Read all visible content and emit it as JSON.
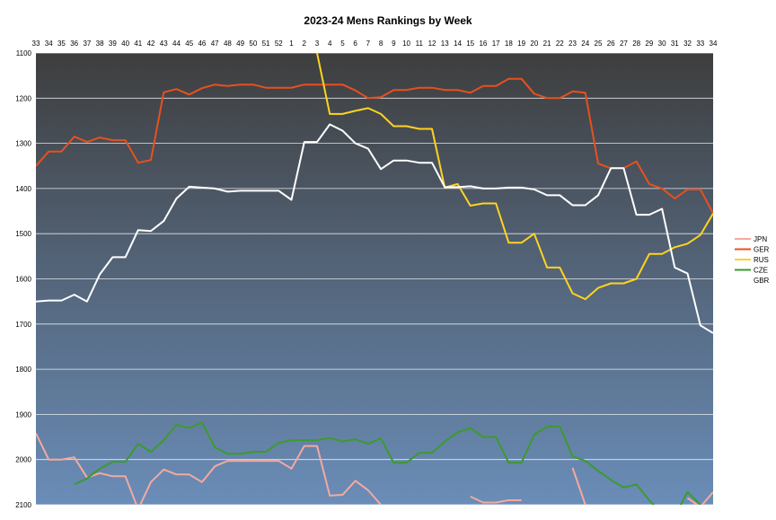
{
  "chart_data": {
    "type": "line",
    "title": "2023-24 Mens Rankings by Week",
    "xlabel": "",
    "ylabel": "",
    "categories": [
      "33",
      "34",
      "35",
      "36",
      "37",
      "38",
      "39",
      "40",
      "41",
      "42",
      "43",
      "44",
      "45",
      "46",
      "47",
      "48",
      "49",
      "50",
      "51",
      "52",
      "1",
      "2",
      "3",
      "4",
      "5",
      "6",
      "7",
      "8",
      "9",
      "10",
      "11",
      "12",
      "13",
      "14",
      "15",
      "16",
      "17",
      "18",
      "19",
      "20",
      "21",
      "22",
      "23",
      "24",
      "25",
      "26",
      "27",
      "28",
      "29",
      "30",
      "31",
      "32",
      "33",
      "34"
    ],
    "ylim": [
      1100,
      2100
    ],
    "y_reversed": true,
    "y_ticks": [
      1100,
      1200,
      1300,
      1400,
      1500,
      1600,
      1700,
      1800,
      1900,
      2000,
      2100
    ],
    "grid": true,
    "legend_position": "right",
    "colors": {
      "JPN": "#f4a9a0",
      "GER": "#e8501e",
      "RUS": "#ffd320",
      "CZE": "#3d9a2f",
      "GBR": "#ffffff",
      "bg_top": "#3e3e3e",
      "bg_bottom": "#6a8db8",
      "grid": "#ffffff"
    },
    "series": [
      {
        "name": "JPN",
        "values": [
          1942,
          2000,
          2000,
          1995,
          2040,
          2030,
          2037,
          2037,
          2110,
          2050,
          2022,
          2033,
          2033,
          2050,
          2015,
          2003,
          2003,
          2003,
          2003,
          2003,
          2020,
          1970,
          1970,
          2080,
          2078,
          2047,
          2068,
          2100,
          null,
          null,
          null,
          null,
          null,
          null,
          2082,
          2095,
          2095,
          2090,
          2090,
          null,
          null,
          null,
          2018,
          2100,
          null,
          null,
          null,
          null,
          null,
          null,
          null,
          2085,
          2105,
          2072
        ]
      },
      {
        "name": "GER",
        "values": [
          1350,
          1318,
          1318,
          1285,
          1297,
          1287,
          1293,
          1293,
          1343,
          1337,
          1187,
          1180,
          1192,
          1178,
          1170,
          1173,
          1170,
          1170,
          1177,
          1177,
          1177,
          1170,
          1170,
          1170,
          1170,
          1183,
          1200,
          1198,
          1182,
          1182,
          1177,
          1177,
          1182,
          1182,
          1188,
          1173,
          1173,
          1157,
          1157,
          1190,
          1200,
          1200,
          1185,
          1188,
          1345,
          1355,
          1355,
          1340,
          1390,
          1400,
          1422,
          1402,
          1402,
          1455
        ]
      },
      {
        "name": "RUS",
        "values": [
          null,
          null,
          null,
          null,
          null,
          null,
          null,
          null,
          null,
          null,
          null,
          null,
          null,
          null,
          null,
          null,
          null,
          null,
          null,
          null,
          null,
          null,
          1100,
          1235,
          1235,
          1228,
          1222,
          1235,
          1262,
          1262,
          1268,
          1268,
          1398,
          1390,
          1438,
          1433,
          1433,
          1520,
          1520,
          1500,
          1575,
          1575,
          1632,
          1645,
          1620,
          1610,
          1610,
          1600,
          1545,
          1545,
          1530,
          1522,
          1503,
          1455
        ]
      },
      {
        "name": "CZE",
        "values": [
          null,
          null,
          null,
          2055,
          2042,
          2020,
          2005,
          2005,
          1965,
          1983,
          1957,
          1923,
          1930,
          1918,
          1973,
          1987,
          1987,
          1983,
          1983,
          1963,
          1957,
          1957,
          1957,
          1952,
          1960,
          1955,
          1965,
          1953,
          2007,
          2007,
          1985,
          1985,
          1960,
          1940,
          1930,
          1950,
          1950,
          2007,
          2007,
          1945,
          1927,
          1927,
          1993,
          2003,
          2025,
          2045,
          2062,
          2055,
          2090,
          2120,
          2125,
          2072,
          2100,
          null
        ]
      },
      {
        "name": "GBR",
        "values": [
          1650,
          1648,
          1648,
          1635,
          1650,
          1590,
          1552,
          1552,
          1492,
          1494,
          1472,
          1422,
          1396,
          1398,
          1400,
          1407,
          1405,
          1405,
          1405,
          1405,
          1425,
          1297,
          1297,
          1258,
          1272,
          1300,
          1312,
          1357,
          1338,
          1338,
          1343,
          1343,
          1397,
          1397,
          1395,
          1400,
          1400,
          1398,
          1398,
          1402,
          1415,
          1415,
          1437,
          1437,
          1415,
          1355,
          1355,
          1458,
          1458,
          1445,
          1575,
          1588,
          1703,
          1720
        ]
      }
    ]
  }
}
